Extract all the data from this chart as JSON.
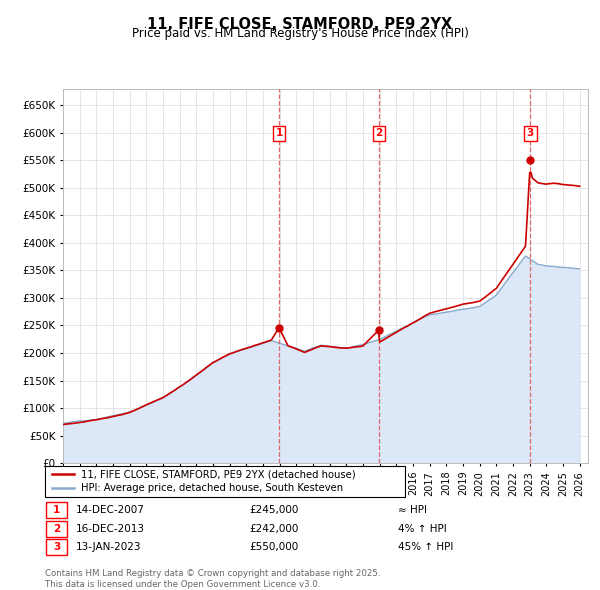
{
  "title": "11, FIFE CLOSE, STAMFORD, PE9 2YX",
  "subtitle": "Price paid vs. HM Land Registry's House Price Index (HPI)",
  "ylim": [
    0,
    680000
  ],
  "yticks": [
    0,
    50000,
    100000,
    150000,
    200000,
    250000,
    300000,
    350000,
    400000,
    450000,
    500000,
    550000,
    600000,
    650000
  ],
  "xlim_start": 1995.0,
  "xlim_end": 2026.5,
  "grid_color": "#e0e0e0",
  "dashed_line_color": "#e05050",
  "hpi_fill_color": "#dce8f8",
  "hpi_line_color": "#88aacc",
  "price_line_color": "#cc0000",
  "transactions": [
    {
      "num": 1,
      "date_num": 2007.96,
      "price": 245000,
      "label": "1",
      "date_str": "14-DEC-2007",
      "price_str": "£245,000",
      "hpi_str": "≈ HPI"
    },
    {
      "num": 2,
      "date_num": 2013.96,
      "price": 242000,
      "label": "2",
      "date_str": "16-DEC-2013",
      "price_str": "£242,000",
      "hpi_str": "4% ↑ HPI"
    },
    {
      "num": 3,
      "date_num": 2023.04,
      "price": 550000,
      "label": "3",
      "date_str": "13-JAN-2023",
      "price_str": "£550,000",
      "hpi_str": "45% ↑ HPI"
    }
  ],
  "legend_line1": "11, FIFE CLOSE, STAMFORD, PE9 2YX (detached house)",
  "legend_line2": "HPI: Average price, detached house, South Kesteven",
  "footer": "Contains HM Land Registry data © Crown copyright and database right 2025.\nThis data is licensed under the Open Government Licence v3.0."
}
